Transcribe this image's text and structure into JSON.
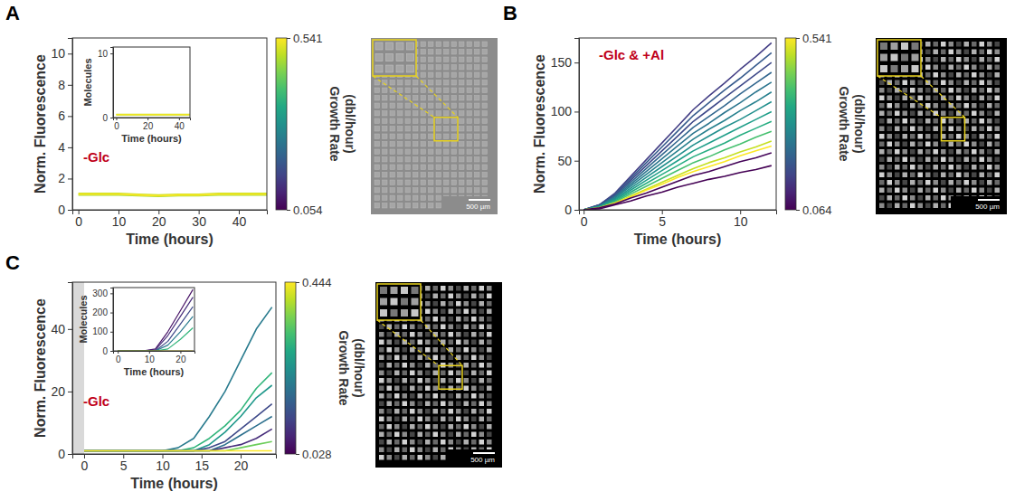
{
  "chart_data": [
    {
      "type": "line",
      "panel": "A",
      "annotation": "-Glc",
      "x_label": "Time (hours)",
      "y_label": "Norm. Fluorescence",
      "x": [
        0,
        5,
        10,
        15,
        20,
        25,
        30,
        35,
        40,
        45,
        47
      ],
      "xlim": [
        -1.5,
        47
      ],
      "xticks": [
        0,
        10,
        20,
        30,
        40
      ],
      "ylim": [
        0,
        11
      ],
      "yticks": [
        0,
        2,
        4,
        6,
        8,
        10
      ],
      "series": [
        {
          "growth_rate": 0.48,
          "values": [
            0.95,
            0.95,
            0.95,
            0.9,
            0.85,
            0.9,
            0.9,
            0.95,
            0.95,
            0.95,
            0.95
          ]
        },
        {
          "growth_rate": 0.5,
          "values": [
            1.05,
            1.05,
            1.05,
            1.0,
            0.95,
            1.0,
            1.0,
            1.05,
            1.05,
            1.05,
            1.05
          ]
        },
        {
          "growth_rate": 0.541,
          "values": [
            1.0,
            1.0,
            1.0,
            0.95,
            0.9,
            0.95,
            0.95,
            1.0,
            1.0,
            1.0,
            1.0
          ]
        }
      ],
      "colorbar": {
        "label": "Growth Rate (dbl/hour)",
        "range": [
          0.054,
          0.541
        ],
        "ticks": [
          0.054,
          0.541
        ]
      },
      "inset": {
        "type": "line",
        "x_label": "Time (hours)",
        "y_label": "Molecules",
        "x": [
          0,
          10,
          20,
          30,
          40,
          47
        ],
        "xlim": [
          -2,
          47
        ],
        "xticks": [
          0,
          20,
          40
        ],
        "ylim": [
          0,
          11
        ],
        "yticks": [
          0,
          10
        ],
        "series": [
          {
            "growth_rate": 0.48,
            "values": [
              0.4,
              0.4,
              0.4,
              0.4,
              0.4,
              0.4
            ]
          },
          {
            "growth_rate": 0.5,
            "values": [
              0.5,
              0.5,
              0.5,
              0.5,
              0.5,
              0.5
            ]
          },
          {
            "growth_rate": 0.541,
            "values": [
              0.45,
              0.45,
              0.45,
              0.45,
              0.45,
              0.45
            ]
          }
        ]
      },
      "image": {
        "color": "#8c8c8c",
        "scale_bar": "500 µm"
      }
    },
    {
      "type": "line",
      "panel": "B",
      "annotation": "-Glc & +Al",
      "x_label": "Time (hours)",
      "y_label": "Norm. Fluorescence",
      "x": [
        0,
        1,
        2,
        3,
        4,
        5,
        6,
        7,
        8,
        9,
        10,
        11,
        12
      ],
      "xlim": [
        -0.3,
        12.3
      ],
      "xticks": [
        0,
        5,
        10
      ],
      "ylim": [
        0,
        175
      ],
      "yticks": [
        0,
        50,
        100,
        150
      ],
      "series": [
        {
          "growth_rate": 0.15,
          "values": [
            0,
            5,
            17,
            34,
            51,
            68,
            85,
            102,
            116,
            129,
            143,
            156,
            170
          ]
        },
        {
          "growth_rate": 0.2,
          "values": [
            0,
            5,
            16,
            32,
            48,
            64,
            80,
            96,
            109,
            122,
            134,
            147,
            160
          ]
        },
        {
          "growth_rate": 0.17,
          "values": [
            0,
            5,
            15,
            30,
            45,
            60,
            75,
            90,
            102,
            114,
            126,
            138,
            150
          ]
        },
        {
          "growth_rate": 0.22,
          "values": [
            0,
            4,
            14,
            28,
            42,
            56,
            70,
            84,
            95,
            106,
            118,
            129,
            140
          ]
        },
        {
          "growth_rate": 0.25,
          "values": [
            0,
            4,
            13,
            26,
            39,
            52,
            65,
            78,
            88,
            99,
            109,
            120,
            130
          ]
        },
        {
          "growth_rate": 0.27,
          "values": [
            0,
            4,
            12,
            24,
            36,
            48,
            60,
            72,
            82,
            91,
            101,
            110,
            120
          ]
        },
        {
          "growth_rate": 0.3,
          "values": [
            0,
            3,
            11,
            22,
            33,
            44,
            55,
            66,
            75,
            84,
            92,
            101,
            110
          ]
        },
        {
          "growth_rate": 0.33,
          "values": [
            0,
            3,
            10,
            20,
            30,
            40,
            50,
            60,
            68,
            76,
            84,
            92,
            100
          ]
        },
        {
          "growth_rate": 0.36,
          "values": [
            0,
            3,
            9,
            18,
            27,
            36,
            45,
            54,
            61,
            68,
            76,
            83,
            90
          ]
        },
        {
          "growth_rate": 0.4,
          "values": [
            0,
            2,
            8,
            16,
            24,
            32,
            40,
            48,
            54,
            61,
            67,
            74,
            80
          ]
        },
        {
          "growth_rate": 0.5,
          "values": [
            0,
            2,
            7,
            14,
            21,
            28,
            35,
            42,
            48,
            53,
            59,
            64,
            70
          ]
        },
        {
          "growth_rate": 0.541,
          "values": [
            0,
            2,
            7,
            13,
            20,
            26,
            33,
            39,
            44,
            49,
            55,
            60,
            65
          ]
        },
        {
          "growth_rate": 0.07,
          "values": [
            0,
            2,
            6,
            12,
            17,
            23,
            29,
            35,
            39,
            44,
            49,
            53,
            58
          ]
        },
        {
          "growth_rate": 0.064,
          "values": [
            0,
            1,
            5,
            9,
            14,
            18,
            23,
            27,
            31,
            34,
            38,
            41,
            45
          ]
        }
      ],
      "colorbar": {
        "label": "Growth Rate (dbl/hour)",
        "range": [
          0.064,
          0.541
        ],
        "ticks": [
          0.064,
          0.541
        ]
      },
      "image": {
        "color": "#000000",
        "scale_bar": "500 µm"
      }
    },
    {
      "type": "line",
      "panel": "C",
      "annotation": "-Glc",
      "x_label": "Time (hours)",
      "y_label": "Norm. Fluorescence",
      "x": [
        0,
        2,
        4,
        6,
        8,
        10,
        12,
        14,
        16,
        18,
        20,
        22,
        24
      ],
      "xlim": [
        -1.5,
        24.5
      ],
      "xticks": [
        0,
        5,
        10,
        15,
        20
      ],
      "ylim": [
        0,
        55
      ],
      "yticks": [
        0,
        20,
        40
      ],
      "shaded_region": [
        -1.5,
        0
      ],
      "series": [
        {
          "growth_rate": 0.2,
          "values": [
            1,
            1,
            1,
            1,
            1,
            1,
            2,
            5,
            12,
            20,
            30,
            40,
            47
          ]
        },
        {
          "growth_rate": 0.3,
          "values": [
            1,
            1,
            1,
            1,
            1,
            1,
            1,
            2,
            5,
            9,
            14,
            21,
            26
          ]
        },
        {
          "growth_rate": 0.25,
          "values": [
            1,
            1,
            1,
            1,
            1,
            1,
            1,
            1,
            3,
            7,
            12,
            18,
            22
          ]
        },
        {
          "growth_rate": 0.12,
          "values": [
            1,
            1,
            1,
            1,
            1,
            1,
            1,
            1,
            2,
            4,
            8,
            12,
            16
          ]
        },
        {
          "growth_rate": 0.18,
          "values": [
            1,
            1,
            1,
            1,
            1,
            1,
            1,
            1,
            1,
            3,
            6,
            9,
            12
          ]
        },
        {
          "growth_rate": 0.08,
          "values": [
            1,
            1,
            1,
            1,
            1,
            1,
            1,
            1,
            1,
            2,
            3,
            5,
            8
          ]
        },
        {
          "growth_rate": 0.35,
          "values": [
            1,
            1,
            1,
            1,
            1,
            1,
            1,
            1,
            1,
            1,
            2,
            3,
            4
          ]
        },
        {
          "growth_rate": 0.444,
          "values": [
            1,
            1,
            1,
            1,
            1,
            1,
            1,
            1,
            1,
            1,
            1,
            1,
            1
          ]
        }
      ],
      "colorbar": {
        "label": "Growth Rate (dbl/hour)",
        "range": [
          0.028,
          0.444
        ],
        "ticks": [
          0.028,
          0.444
        ]
      },
      "inset": {
        "type": "line",
        "x_label": "Time (hours)",
        "y_label": "Molecules",
        "x": [
          0,
          4,
          8,
          12,
          16,
          20,
          24
        ],
        "xlim": [
          -1.5,
          24.5
        ],
        "xticks": [
          0,
          10,
          20
        ],
        "ylim": [
          0,
          330
        ],
        "yticks": [
          0,
          100,
          200,
          300
        ],
        "series": [
          {
            "growth_rate": 0.05,
            "values": [
              0,
              0,
              0,
              10,
              100,
              210,
              320
            ]
          },
          {
            "growth_rate": 0.08,
            "values": [
              0,
              0,
              0,
              5,
              80,
              180,
              280
            ]
          },
          {
            "growth_rate": 0.12,
            "values": [
              0,
              0,
              0,
              0,
              50,
              140,
              230
            ]
          },
          {
            "growth_rate": 0.2,
            "values": [
              0,
              0,
              0,
              0,
              30,
              100,
              180
            ]
          },
          {
            "growth_rate": 0.3,
            "values": [
              0,
              0,
              0,
              0,
              10,
              60,
              120
            ]
          },
          {
            "growth_rate": 0.444,
            "values": [
              0,
              0,
              0,
              0,
              0,
              0,
              0
            ]
          }
        ]
      },
      "image": {
        "color": "#000000",
        "scale_bar": "500 µm"
      }
    }
  ]
}
